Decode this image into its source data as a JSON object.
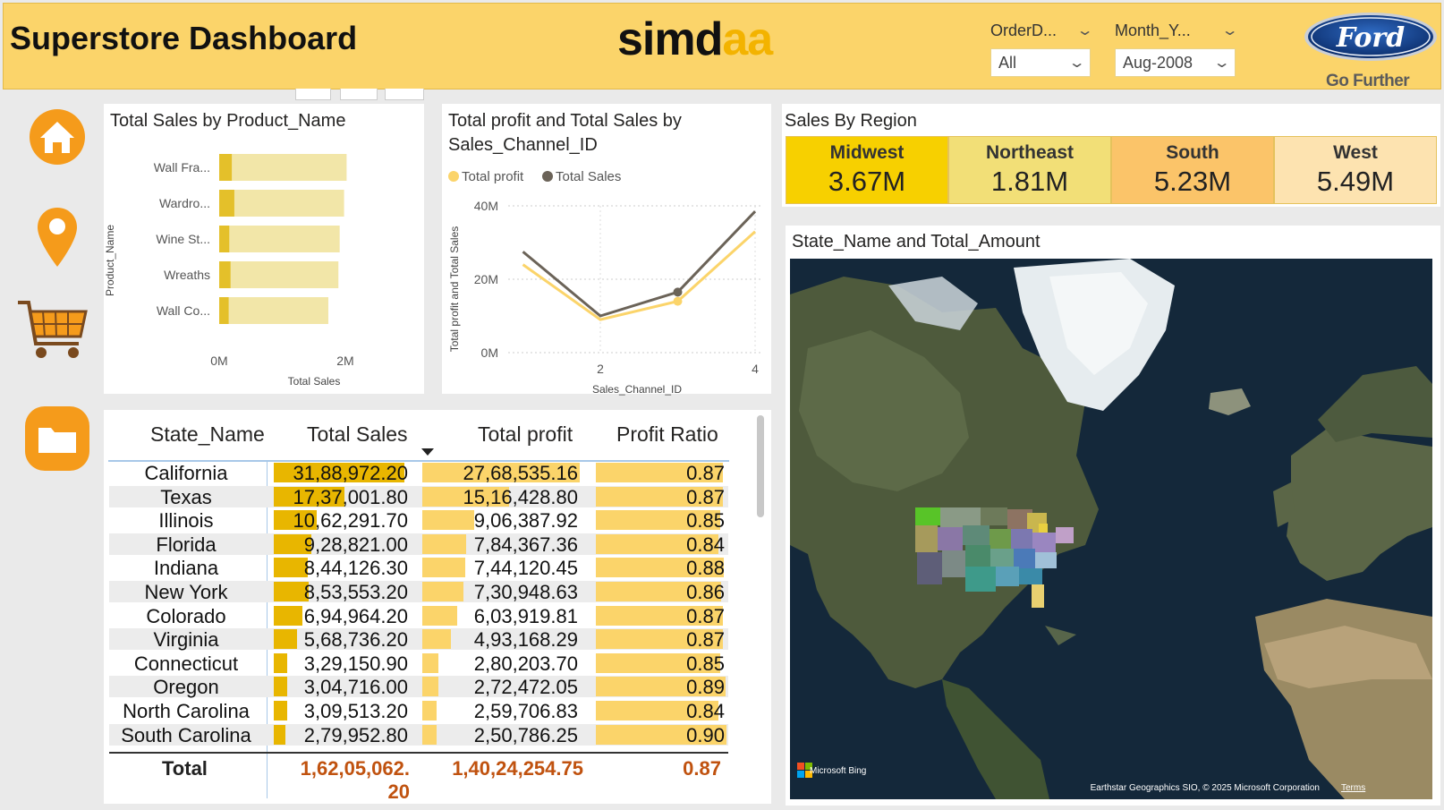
{
  "header": {
    "title": "Superstore Dashboard",
    "brand_part1": "simd",
    "brand_part2": "aa",
    "slicers": [
      {
        "label": "OrderD...",
        "value": "All"
      },
      {
        "label": "Month_Y...",
        "value": "Aug-2008"
      }
    ],
    "logo_text": "Ford",
    "tagline": "Go Further"
  },
  "nav": {
    "items": [
      {
        "icon": "home-icon"
      },
      {
        "icon": "location-pin-icon"
      },
      {
        "icon": "shopping-cart-icon"
      },
      {
        "icon": "folder-icon"
      }
    ]
  },
  "colors": {
    "accent": "#fbd46a",
    "gold_bar": "#e4c02a",
    "light_bar": "#f2e6a8",
    "table_bar": "#fbd46a",
    "sales_bar": "#e8b600",
    "profit_line": "#fbd46a",
    "sales_line": "#6b6358",
    "total_text": "#c0520f"
  },
  "product_chart": {
    "title": "Total Sales by Product_Name",
    "xlabel": "Total Sales",
    "ylabel": "Product_Name",
    "tick_0": "0M",
    "tick_1": "2M"
  },
  "line_chart": {
    "title": "Total profit and Total Sales by Sales_Channel_ID",
    "legend_profit": "Total profit",
    "legend_sales": "Total Sales",
    "ylabel": "Total profit and Total Sales",
    "xlabel": "Sales_Channel_ID",
    "yticks": [
      "40M",
      "20M",
      "0M"
    ],
    "xticks": [
      "2",
      "4"
    ]
  },
  "chart_data": [
    {
      "type": "bar",
      "orientation": "horizontal",
      "title": "Total Sales by Product_Name",
      "categories": [
        "Wall Fra...",
        "Wardro...",
        "Wine St...",
        "Wreaths",
        "Wall Co..."
      ],
      "series": [
        {
          "values": [
            2.02,
            1.98,
            1.91,
            1.89,
            1.73
          ]
        },
        {
          "values": [
            0.2,
            0.24,
            0.16,
            0.18,
            0.15
          ]
        }
      ],
      "xlabel": "Total Sales",
      "ylabel": "Product_Name",
      "xlim": [
        0,
        2
      ]
    },
    {
      "type": "line",
      "title": "Total profit and Total Sales by Sales_Channel_ID",
      "x": [
        1,
        2,
        3,
        4
      ],
      "series": [
        {
          "name": "Total profit",
          "values": [
            24,
            9,
            14,
            33
          ]
        },
        {
          "name": "Total Sales",
          "values": [
            27.5,
            10,
            16.5,
            38.5
          ]
        }
      ],
      "xlabel": "Sales_Channel_ID",
      "ylabel": "Total profit and Total Sales",
      "ylim": [
        0,
        40
      ],
      "grid": true,
      "legend": "top-left"
    }
  ],
  "regions": {
    "title": "Sales By Region",
    "items": [
      {
        "name": "Midwest",
        "value": "3.67M",
        "color": "#f7d000"
      },
      {
        "name": "Northeast",
        "value": "1.81M",
        "color": "#f2df77"
      },
      {
        "name": "South",
        "value": "5.23M",
        "color": "#fbc469"
      },
      {
        "name": "West",
        "value": "5.49M",
        "color": "#fde3b0"
      }
    ]
  },
  "table": {
    "headers": [
      "State_Name",
      "Total Sales",
      "Total profit",
      "Profit Ratio"
    ],
    "rows": [
      {
        "state": "California",
        "sales": "31,88,972.20",
        "profit": "27,68,535.16",
        "ratio": "0.87",
        "sales_frac": 1.0,
        "profit_frac": 1.0,
        "ratio_frac": 0.97
      },
      {
        "state": "Texas",
        "sales": "17,37,001.80",
        "profit": "15,16,428.80",
        "ratio": "0.87",
        "sales_frac": 0.54,
        "profit_frac": 0.55,
        "ratio_frac": 0.97
      },
      {
        "state": "Illinois",
        "sales": "10,62,291.70",
        "profit": "9,06,387.92",
        "ratio": "0.85",
        "sales_frac": 0.33,
        "profit_frac": 0.33,
        "ratio_frac": 0.95
      },
      {
        "state": "Florida",
        "sales": "9,28,821.00",
        "profit": "7,84,367.36",
        "ratio": "0.84",
        "sales_frac": 0.29,
        "profit_frac": 0.28,
        "ratio_frac": 0.94
      },
      {
        "state": "Indiana",
        "sales": "8,44,126.30",
        "profit": "7,44,120.45",
        "ratio": "0.88",
        "sales_frac": 0.26,
        "profit_frac": 0.27,
        "ratio_frac": 0.98
      },
      {
        "state": "New York",
        "sales": "8,53,553.20",
        "profit": "7,30,948.63",
        "ratio": "0.86",
        "sales_frac": 0.27,
        "profit_frac": 0.26,
        "ratio_frac": 0.96
      },
      {
        "state": "Colorado",
        "sales": "6,94,964.20",
        "profit": "6,03,919.81",
        "ratio": "0.87",
        "sales_frac": 0.22,
        "profit_frac": 0.22,
        "ratio_frac": 0.97
      },
      {
        "state": "Virginia",
        "sales": "5,68,736.20",
        "profit": "4,93,168.29",
        "ratio": "0.87",
        "sales_frac": 0.18,
        "profit_frac": 0.18,
        "ratio_frac": 0.97
      },
      {
        "state": "Connecticut",
        "sales": "3,29,150.90",
        "profit": "2,80,203.70",
        "ratio": "0.85",
        "sales_frac": 0.1,
        "profit_frac": 0.1,
        "ratio_frac": 0.95
      },
      {
        "state": "Oregon",
        "sales": "3,04,716.00",
        "profit": "2,72,472.05",
        "ratio": "0.89",
        "sales_frac": 0.1,
        "profit_frac": 0.1,
        "ratio_frac": 0.99
      },
      {
        "state": "North Carolina",
        "sales": "3,09,513.20",
        "profit": "2,59,706.83",
        "ratio": "0.84",
        "sales_frac": 0.1,
        "profit_frac": 0.09,
        "ratio_frac": 0.94
      },
      {
        "state": "South Carolina",
        "sales": "2,79,952.80",
        "profit": "2,50,786.25",
        "ratio": "0.90",
        "sales_frac": 0.09,
        "profit_frac": 0.09,
        "ratio_frac": 1.0
      }
    ],
    "total": {
      "label": "Total",
      "sales_line1": "1,62,05,062.",
      "sales_line2": "20",
      "profit": "1,40,24,254.75",
      "ratio": "0.87"
    }
  },
  "map": {
    "title": "State_Name and Total_Amount",
    "provider": "Microsoft Bing",
    "attribution": "Earthstar Geographics SIO, © 2025 Microsoft Corporation",
    "terms": "Terms"
  }
}
